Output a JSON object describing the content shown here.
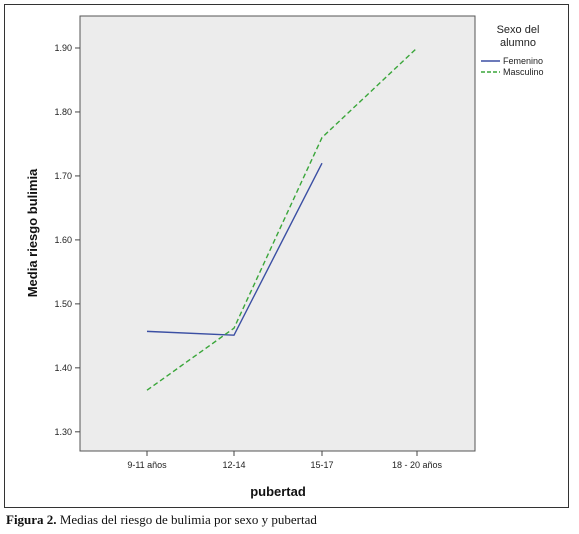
{
  "chart_data": {
    "type": "line",
    "xlabel": "pubertad",
    "ylabel": "Media riesgo bulimia",
    "categories": [
      "9-11 años",
      "12-14",
      "15-17",
      "18 - 20 años"
    ],
    "ylim": [
      1.27,
      1.95
    ],
    "yticks": [
      "1.30",
      "1.40",
      "1.50",
      "1.60",
      "1.70",
      "1.80",
      "1.90"
    ],
    "grid": false,
    "legend_title": "Sexo del alumno",
    "legend_placement": "top-right outside",
    "series": [
      {
        "name": "Femenino",
        "color": "#3b4fa3",
        "style": "solid",
        "values": [
          1.457,
          1.451,
          1.72,
          null
        ]
      },
      {
        "name": "Masculino",
        "color": "#3aa63a",
        "style": "dashed",
        "values": [
          1.365,
          1.462,
          1.76,
          1.9
        ]
      }
    ]
  },
  "caption": {
    "label": "Figura 2.",
    "text": " Medias del riesgo de bulimia por sexo y pubertad"
  }
}
